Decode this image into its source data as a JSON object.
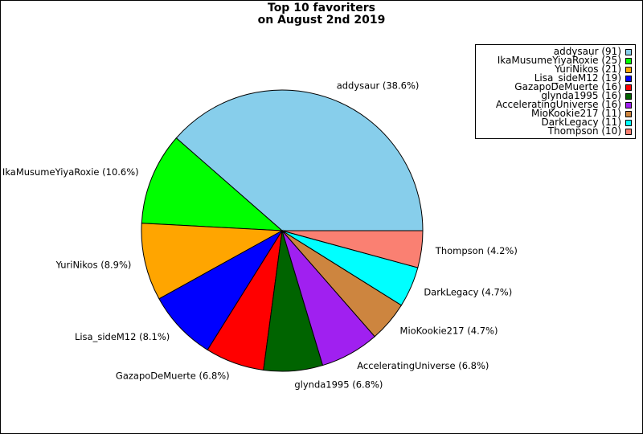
{
  "chart_data": {
    "type": "pie",
    "title": "Top 10 favoriters",
    "subtitle": "on August 2nd 2019",
    "slices": [
      {
        "label": "addysaur",
        "value": 91,
        "percent_label": "addysaur (38.6%)",
        "legend_label": "addysaur (91)",
        "color": "#87ceeb"
      },
      {
        "label": "IkaMusumeYiyaRoxie",
        "value": 25,
        "percent_label": "IkaMusumeYiyaRoxie (10.6%)",
        "legend_label": "IkaMusumeYiyaRoxie (25)",
        "color": "#00ff00"
      },
      {
        "label": "YuriNikos",
        "value": 21,
        "percent_label": "YuriNikos (8.9%)",
        "legend_label": "YuriNikos (21)",
        "color": "#ffa500"
      },
      {
        "label": "Lisa_sideM12",
        "value": 19,
        "percent_label": "Lisa_sideM12 (8.1%)",
        "legend_label": "Lisa_sideM12 (19)",
        "color": "#0000ff"
      },
      {
        "label": "GazapoDeMuerte",
        "value": 16,
        "percent_label": "GazapoDeMuerte (6.8%)",
        "legend_label": "GazapoDeMuerte (16)",
        "color": "#ff0000"
      },
      {
        "label": "glynda1995",
        "value": 16,
        "percent_label": "glynda1995 (6.8%)",
        "legend_label": "glynda1995 (16)",
        "color": "#006400"
      },
      {
        "label": "AcceleratingUniverse",
        "value": 16,
        "percent_label": "AcceleratingUniverse (6.8%)",
        "legend_label": "AcceleratingUniverse (16)",
        "color": "#a020f0"
      },
      {
        "label": "MioKookie217",
        "value": 11,
        "percent_label": "MioKookie217 (4.7%)",
        "legend_label": "MioKookie217 (11)",
        "color": "#cd853f"
      },
      {
        "label": "DarkLegacy",
        "value": 11,
        "percent_label": "DarkLegacy (4.7%)",
        "legend_label": "DarkLegacy (11)",
        "color": "#00ffff"
      },
      {
        "label": "Thompson",
        "value": 10,
        "percent_label": "Thompson (4.2%)",
        "legend_label": "Thompson (10)",
        "color": "#fa8072"
      }
    ],
    "start_angle_deg": 0,
    "direction": "counterclockwise",
    "legend_position": "upper-right"
  }
}
